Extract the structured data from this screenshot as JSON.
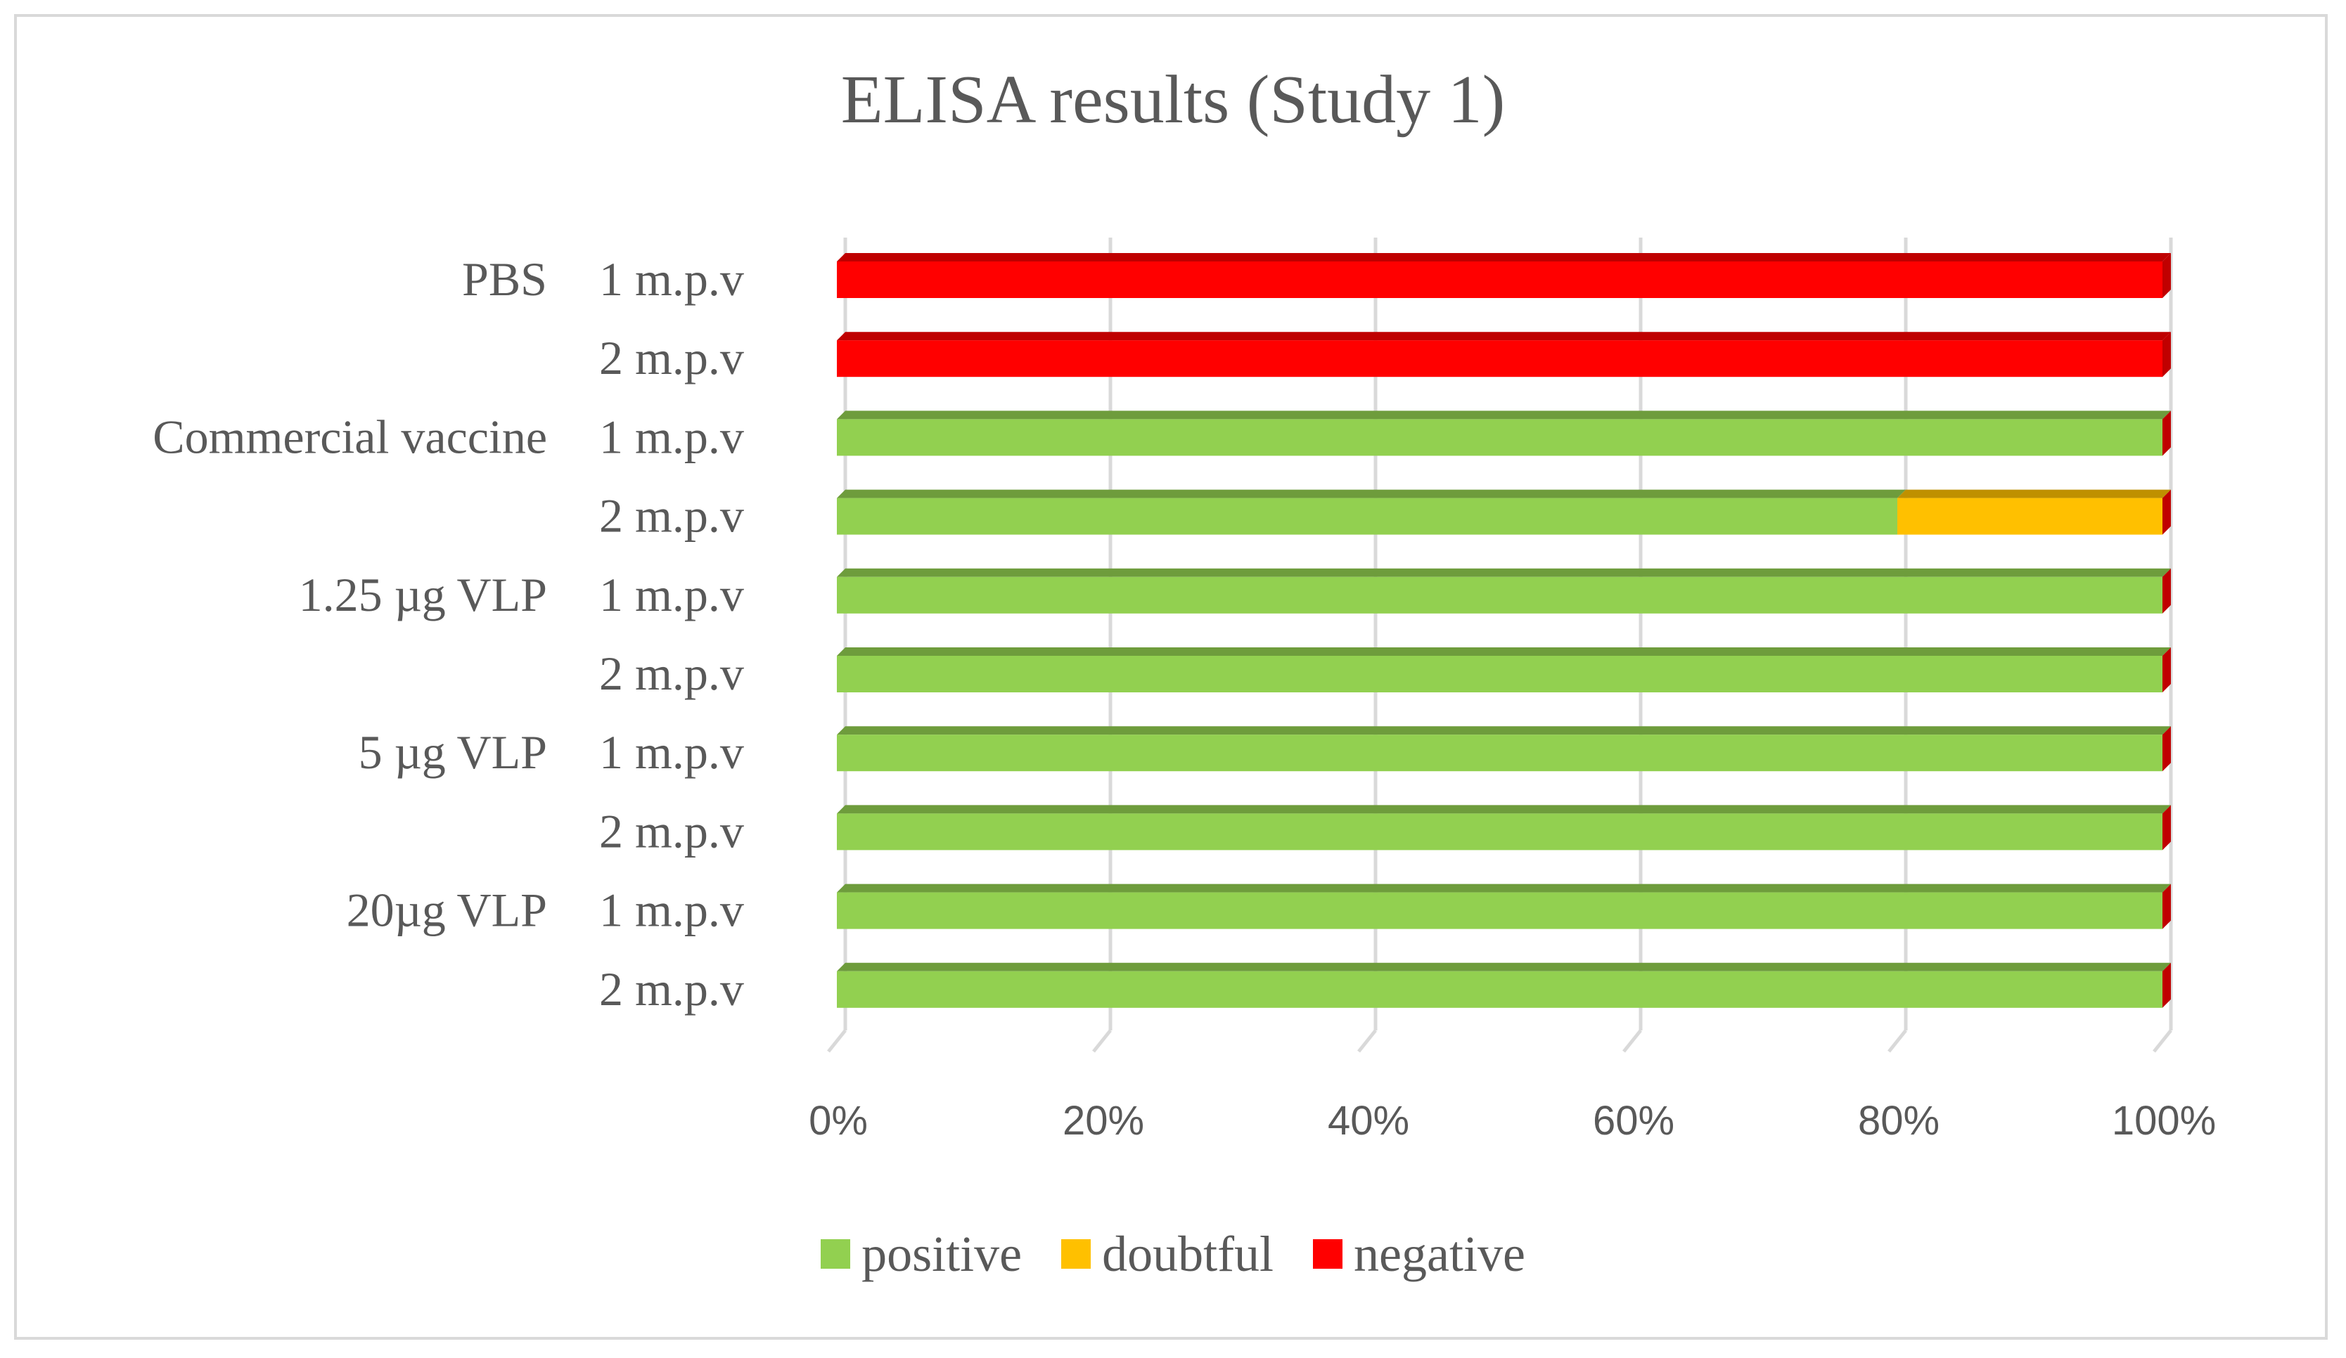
{
  "chart_data": {
    "type": "bar",
    "orientation": "horizontal",
    "stacked": "percent",
    "title": "ELISA results (Study 1)",
    "xlabel": "",
    "ylabel": "",
    "xlim": [
      0,
      100
    ],
    "x_ticks": [
      "0%",
      "20%",
      "40%",
      "60%",
      "80%",
      "100%"
    ],
    "grid": "vertical",
    "legend_position": "bottom",
    "groups": [
      {
        "label": "PBS",
        "rows": [
          "1 m.p.v",
          "2 m.p.v"
        ]
      },
      {
        "label": "Commercial vaccine",
        "rows": [
          "1 m.p.v",
          "2 m.p.v"
        ]
      },
      {
        "label": "1.25 µg VLP",
        "rows": [
          "1 m.p.v",
          "2 m.p.v"
        ]
      },
      {
        "label": "5 µg VLP",
        "rows": [
          "1 m.p.v",
          "2 m.p.v"
        ]
      },
      {
        "label": "20µg VLP",
        "rows": [
          "1 m.p.v",
          "2 m.p.v"
        ]
      }
    ],
    "series": [
      {
        "name": "positive",
        "color": "#92d050",
        "values": [
          0,
          0,
          100,
          80,
          100,
          100,
          100,
          100,
          100,
          100
        ]
      },
      {
        "name": "doubtful",
        "color": "#ffc000",
        "values": [
          0,
          0,
          0,
          20,
          0,
          0,
          0,
          0,
          0,
          0
        ]
      },
      {
        "name": "negative",
        "color": "#ff0000",
        "values": [
          100,
          100,
          0,
          0,
          0,
          0,
          0,
          0,
          0,
          0
        ]
      }
    ]
  }
}
